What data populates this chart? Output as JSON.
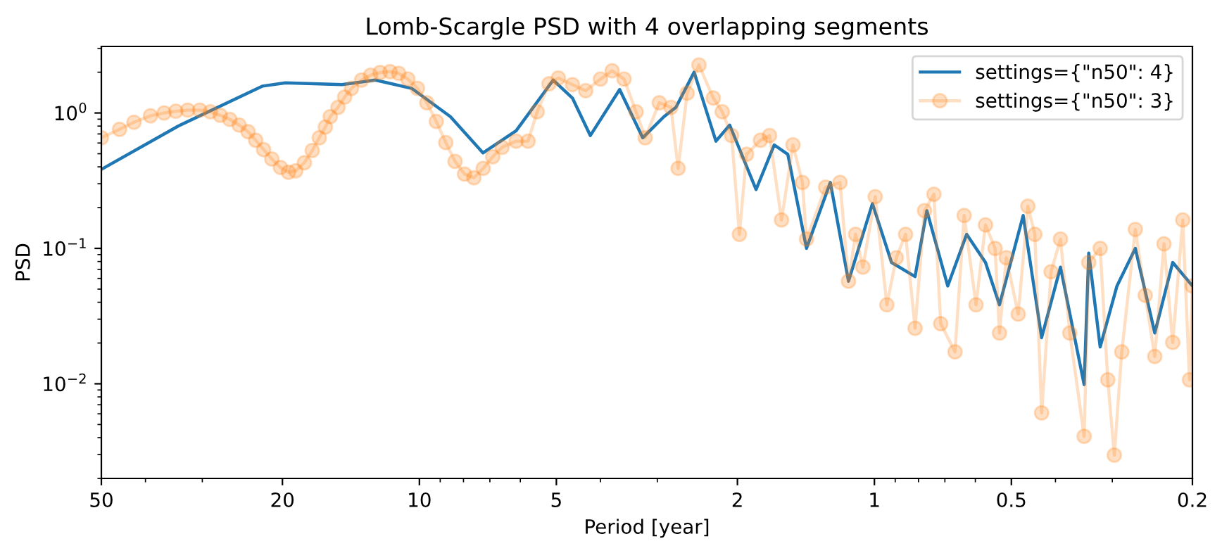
{
  "chart_data": {
    "type": "line",
    "title": "Lomb-Scargle PSD with 4 overlapping segments",
    "xlabel": "Period [year]",
    "ylabel": "PSD",
    "log": "xy",
    "grid": false,
    "legend": "top right",
    "xlim": [
      50,
      0.2
    ],
    "xticks": [
      50,
      20,
      10,
      5,
      2,
      1,
      0.5,
      0.2
    ],
    "ylim": [
      0.002,
      3.1
    ],
    "yticks": [
      {
        "value": 0.01,
        "label": "10$^{−2}$"
      },
      {
        "value": 0.1,
        "label": "10$^{−1}$"
      },
      {
        "value": 1,
        "label": "10$^{0}$"
      }
    ],
    "series": [
      {
        "name": "settings={\"n50\": 4}",
        "color": "#1f77b4",
        "marker": "none",
        "line_style": "solid",
        "x": [
          50,
          33.9,
          22.1,
          19.7,
          14.8,
          12.5,
          10.4,
          8.55,
          7.25,
          6.13,
          5.08,
          4.61,
          4.21,
          3.63,
          3.23,
          2.9,
          2.73,
          2.49,
          2.23,
          2.08,
          1.82,
          1.66,
          1.55,
          1.41,
          1.25,
          1.14,
          1.01,
          0.917,
          0.814,
          0.767,
          0.69,
          0.627,
          0.57,
          0.531,
          0.471,
          0.429,
          0.39,
          0.346,
          0.338,
          0.319,
          0.293,
          0.267,
          0.242,
          0.221,
          0.2
        ],
        "values": [
          0.383,
          0.8,
          1.58,
          1.67,
          1.62,
          1.75,
          1.52,
          0.94,
          0.507,
          0.739,
          1.75,
          1.29,
          0.681,
          1.49,
          0.656,
          0.94,
          1.1,
          2.0,
          0.619,
          0.814,
          0.272,
          0.581,
          0.495,
          0.1,
          0.307,
          0.0572,
          0.214,
          0.0787,
          0.0619,
          0.19,
          0.0528,
          0.127,
          0.0787,
          0.0383,
          0.175,
          0.0219,
          0.0727,
          0.00986,
          0.0924,
          0.0187,
          0.0528,
          0.1,
          0.0237,
          0.0787,
          0.0528
        ]
      },
      {
        "name": "settings={\"n50\": 3}",
        "color": "#ff7f0e",
        "marker": "circle",
        "line_style": "solid",
        "x": [
          50,
          45.6,
          42.4,
          39.0,
          36.4,
          34.3,
          32.3,
          30.4,
          28.8,
          27.4,
          26.1,
          24.9,
          23.8,
          22.9,
          22.0,
          21.1,
          20.2,
          19.4,
          18.7,
          17.9,
          17.2,
          16.6,
          16.1,
          15.7,
          15.1,
          14.6,
          14.1,
          13.4,
          12.8,
          12.2,
          11.6,
          11.1,
          10.6,
          10.1,
          9.63,
          9.18,
          8.75,
          8.35,
          7.96,
          7.59,
          7.24,
          6.9,
          6.58,
          6.13,
          5.77,
          5.51,
          5.19,
          4.95,
          4.61,
          4.31,
          4.0,
          3.77,
          3.55,
          3.34,
          3.19,
          2.97,
          2.8,
          2.7,
          2.58,
          2.43,
          2.26,
          2.16,
          2.06,
          1.98,
          1.91,
          1.78,
          1.7,
          1.6,
          1.51,
          1.44,
          1.41,
          1.28,
          1.19,
          1.14,
          1.1,
          1.06,
          0.996,
          0.939,
          0.895,
          0.854,
          0.814,
          0.776,
          0.74,
          0.715,
          0.665,
          0.635,
          0.598,
          0.57,
          0.543,
          0.531,
          0.513,
          0.483,
          0.46,
          0.444,
          0.429,
          0.409,
          0.39,
          0.372,
          0.346,
          0.338,
          0.319,
          0.307,
          0.297,
          0.286,
          0.267,
          0.254,
          0.242,
          0.231,
          0.221,
          0.21,
          0.203,
          0.2
        ],
        "values": [
          0.656,
          0.757,
          0.854,
          0.953,
          1.0,
          1.03,
          1.05,
          1.05,
          1.02,
          0.962,
          0.896,
          0.814,
          0.727,
          0.629,
          0.536,
          0.457,
          0.396,
          0.365,
          0.374,
          0.429,
          0.528,
          0.656,
          0.787,
          0.94,
          1.1,
          1.31,
          1.52,
          1.75,
          1.9,
          1.99,
          2.02,
          1.96,
          1.78,
          1.52,
          1.19,
          0.866,
          0.604,
          0.439,
          0.354,
          0.332,
          0.39,
          0.475,
          0.558,
          0.619,
          0.619,
          1.02,
          1.64,
          1.81,
          1.62,
          1.46,
          1.78,
          2.05,
          1.78,
          1.02,
          0.656,
          1.19,
          1.1,
          0.39,
          1.4,
          2.26,
          1.29,
          1.02,
          0.681,
          0.127,
          0.495,
          0.629,
          0.681,
          0.162,
          0.581,
          0.307,
          0.117,
          0.283,
          0.307,
          0.0572,
          0.127,
          0.0727,
          0.241,
          0.0383,
          0.0853,
          0.127,
          0.0257,
          0.19,
          0.251,
          0.0278,
          0.0172,
          0.175,
          0.0383,
          0.149,
          0.1,
          0.0237,
          0.0853,
          0.0327,
          0.205,
          0.127,
          0.0061,
          0.0672,
          0.117,
          0.0237,
          0.00409,
          0.0787,
          0.1,
          0.0107,
          0.00297,
          0.0172,
          0.138,
          0.045,
          0.0159,
          0.108,
          0.0202,
          0.162,
          0.0107,
          0.0528
        ]
      }
    ]
  }
}
